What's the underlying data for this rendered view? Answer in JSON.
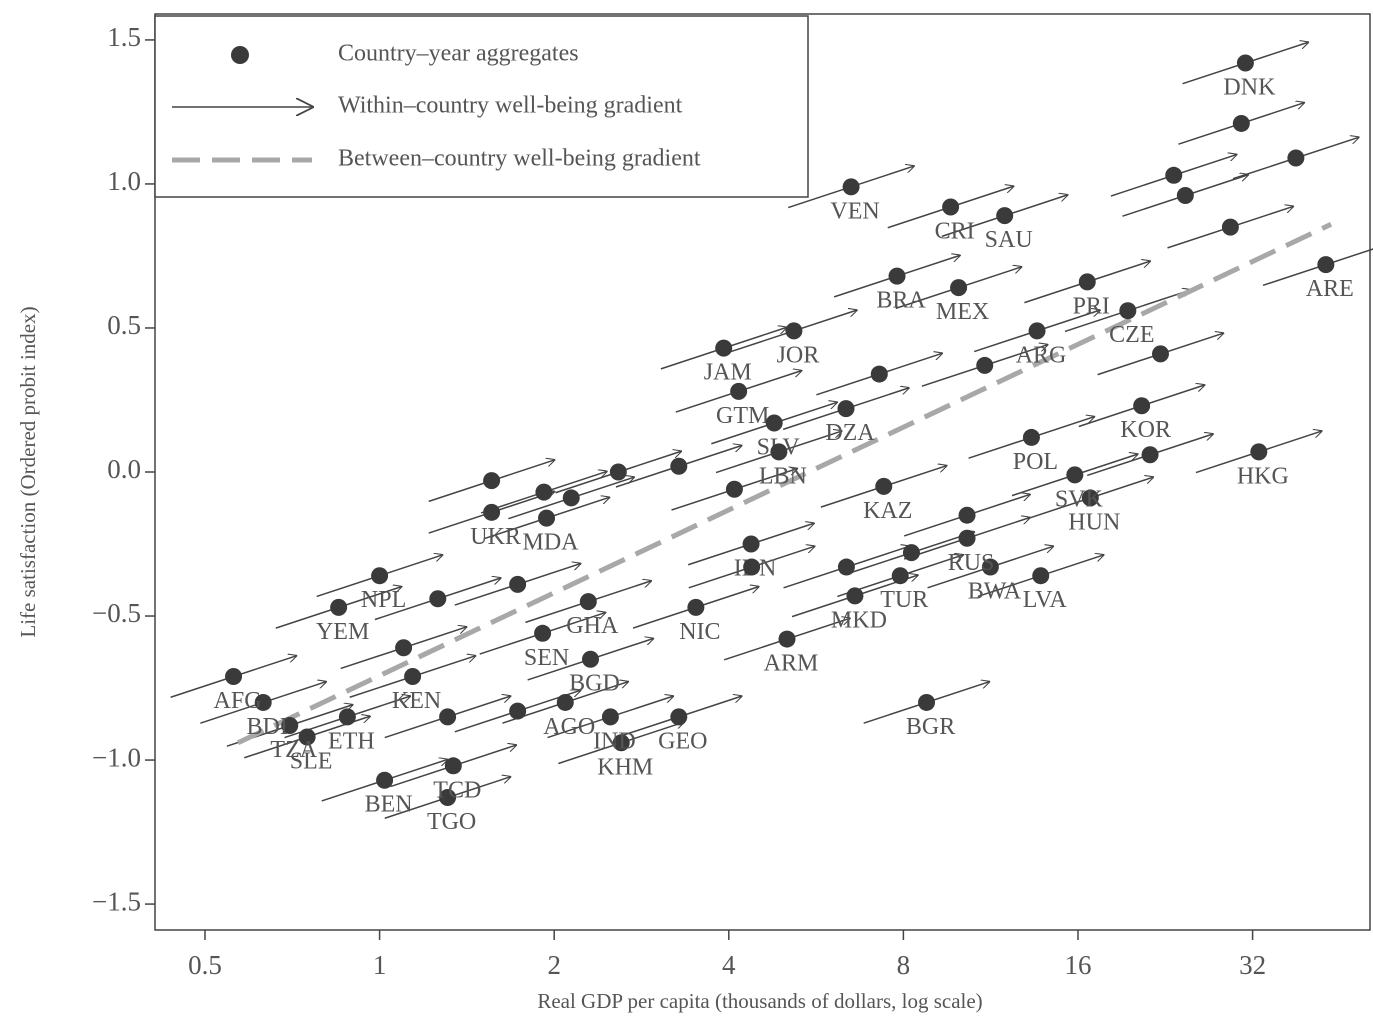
{
  "chart_data": {
    "type": "scatter",
    "x_label": "Real GDP per capita (thousands of dollars, log scale)",
    "y_label": "Life satisfaction (Ordered probit index)",
    "xscale": "log",
    "xlim": [
      0.41,
      51
    ],
    "ylim": [
      -1.59,
      1.59
    ],
    "xticks": [
      0.5,
      1,
      2,
      4,
      8,
      16,
      32
    ],
    "yticks": [
      1.5,
      {
        "value": 1.0,
        "label": "1.0"
      },
      0.5,
      {
        "value": 0.0,
        "label": "0.0"
      },
      {
        "value": -0.5,
        "label": "−0.5"
      },
      {
        "value": -1.0,
        "label": "−1.0"
      },
      {
        "value": -1.5,
        "label": "−1.5"
      }
    ],
    "series": [
      {
        "name": "Country–year aggregates",
        "color": "#3a3a3a",
        "x": [
          31.1,
          6.5,
          9.65,
          11.96,
          7.8,
          9.96,
          3.92,
          5.18,
          4.16,
          4.79,
          6.37,
          4.88,
          42.8,
          32.8,
          16.6,
          19.5,
          13.6,
          13.3,
          16.8,
          15.8,
          20.6,
          11.3,
          13.8,
          10.3,
          7.9,
          8.77,
          6.6,
          5.04,
          7.4,
          3.51,
          4.37,
          3.28,
          2.61,
          2.5,
          2.09,
          2.31,
          2.29,
          1.91,
          0.85,
          1.0,
          1.02,
          1.31,
          1.34,
          0.75,
          0.7,
          0.63,
          0.56,
          0.88,
          1.14,
          1.56,
          1.94,
          30.6,
          23.4,
          38,
          29.3,
          24.5,
          2.58,
          3.28,
          1.56,
          1.92,
          2.14,
          4.09,
          6.38,
          8.26,
          10.3,
          7.27,
          11.05,
          1.1,
          1.26,
          1.73,
          1.31,
          1.73,
          4.38,
          21.3,
          22.2
        ],
        "values": [
          1.42,
          0.99,
          0.92,
          0.89,
          0.68,
          0.64,
          0.43,
          0.49,
          0.28,
          0.17,
          0.22,
          0.07,
          0.72,
          0.07,
          0.66,
          0.56,
          0.49,
          0.12,
          -0.09,
          -0.01,
          0.23,
          -0.33,
          -0.36,
          -0.23,
          -0.36,
          -0.8,
          -0.43,
          -0.58,
          -0.05,
          -0.47,
          -0.25,
          -0.85,
          -0.94,
          -0.85,
          -0.8,
          -0.65,
          -0.45,
          -0.56,
          -0.47,
          -0.36,
          -1.07,
          -1.13,
          -1.02,
          -0.92,
          -0.88,
          -0.8,
          -0.71,
          -0.85,
          -0.71,
          -0.14,
          -0.16,
          1.21,
          1.03,
          1.09,
          0.85,
          0.96,
          0.0,
          0.02,
          -0.03,
          -0.07,
          -0.09,
          -0.06,
          -0.33,
          -0.28,
          -0.15,
          0.34,
          0.37,
          -0.61,
          -0.44,
          -0.39,
          -0.85,
          -0.83,
          -0.33,
          0.06,
          0.41
        ],
        "labels": [
          "DNK",
          "VEN",
          "CRI",
          "SAU",
          "BRA",
          "MEX",
          "JAM",
          "JOR",
          "GTM",
          "SLV",
          "DZA",
          "LBN",
          "ARE",
          "HKG",
          "PRI",
          "CZE",
          "ARG",
          "POL",
          "HUN",
          "SVK",
          "KOR",
          "BWA",
          "LVA",
          "RUS",
          "TUR",
          "BGR",
          "MKD",
          "ARM",
          "KAZ",
          "NIC",
          "IDN",
          "GEO",
          "KHM",
          "IND",
          "AGO",
          "BGD",
          "GHA",
          "SEN",
          "YEM",
          "NPL",
          "BEN",
          "TGO",
          "TCD",
          "SLE",
          "TZA",
          "BDI",
          "AFG",
          "ETH",
          "KEN",
          "UKR",
          "MDA",
          null,
          null,
          null,
          null,
          null,
          null,
          null,
          null,
          null,
          null,
          null,
          null,
          null,
          null,
          null,
          null,
          null,
          null,
          null,
          null,
          null,
          null,
          null,
          null
        ]
      },
      {
        "name": "Within–country well-being gradient",
        "color": "#444444",
        "slope": 0.2
      },
      {
        "name": "Between–country well-being gradient",
        "color": "#a8a8a8",
        "x": [
          0.57,
          43.7
        ],
        "values": [
          -0.94,
          0.86
        ]
      }
    ]
  }
}
